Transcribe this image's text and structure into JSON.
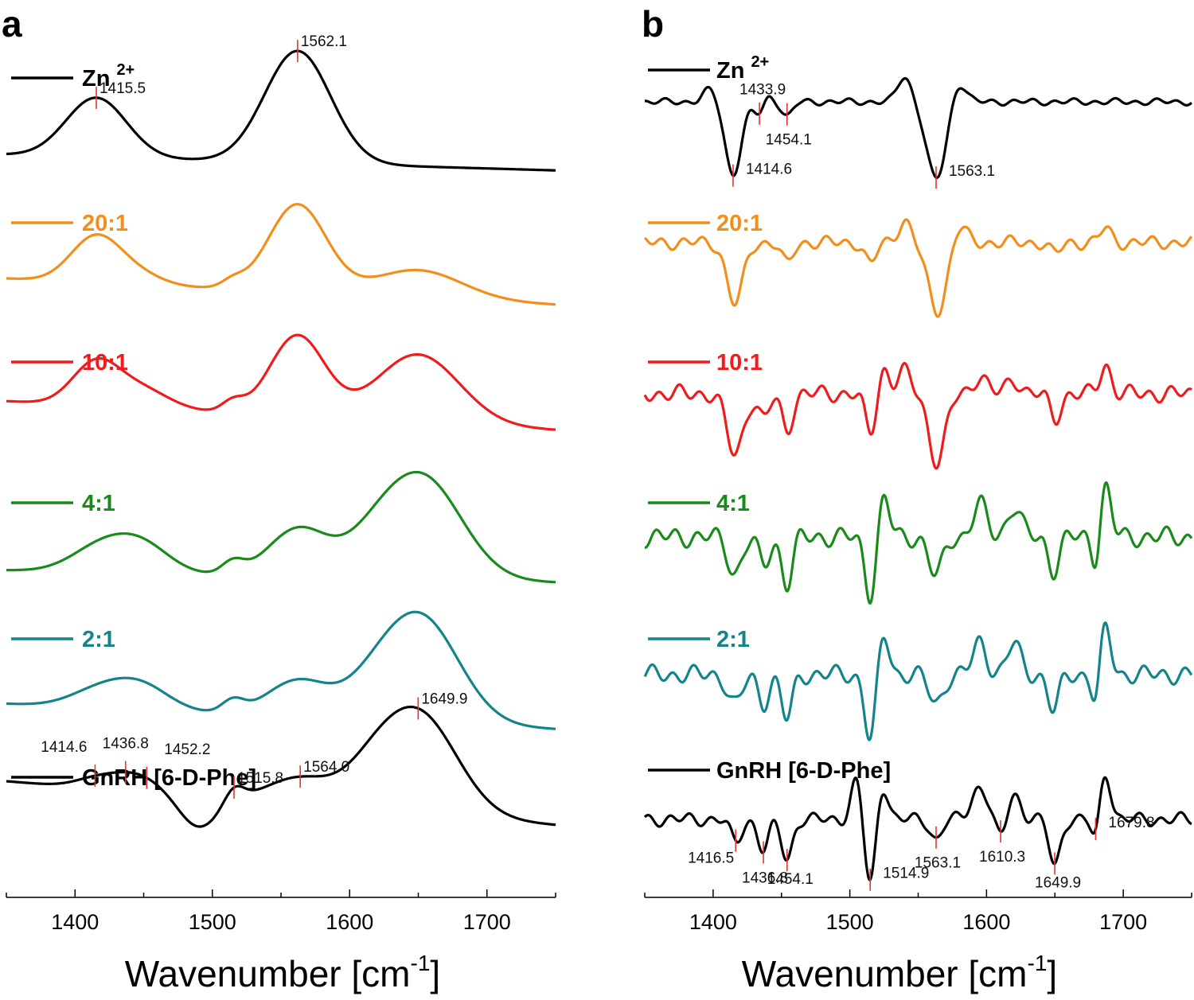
{
  "colors": {
    "zn": "#000000",
    "r20": "#f28e1c",
    "r10": "#ee1c1c",
    "r4": "#1a8a1a",
    "r2": "#13858a",
    "gnrh": "#000000",
    "marker": "#e8322f"
  },
  "chart_data": [
    {
      "panel": "a",
      "type": "line",
      "xlabel_main": "Wavenumber [cm",
      "xlabel_sup": "-1",
      "xlabel_close": "]",
      "xlim": [
        1350,
        1750
      ],
      "xticks": [
        1400,
        1500,
        1600,
        1700
      ],
      "ytick_labels": false,
      "series": [
        {
          "name": "Zn",
          "name_sup": "2+",
          "color_key": "zn",
          "offset": 5,
          "peaks": [
            {
              "x": 1415.5,
              "h": 0.68,
              "w": 22
            },
            {
              "x": 1562.1,
              "h": 1.28,
              "w": 24
            }
          ],
          "baseline": [
            0.16,
            -0.02
          ],
          "markers": [
            {
              "x": 1415.5,
              "label": "1415.5",
              "side": "right"
            },
            {
              "x": 1562.1,
              "label": "1562.1",
              "side": "right"
            }
          ]
        },
        {
          "name": "20:1",
          "color_key": "r20",
          "offset": 4,
          "peaks": [
            {
              "x": 1415,
              "h": 0.52,
              "w": 18
            },
            {
              "x": 1445,
              "h": 0.12,
              "w": 18
            },
            {
              "x": 1515,
              "h": 0.08,
              "w": 8
            },
            {
              "x": 1562,
              "h": 1.0,
              "w": 21
            },
            {
              "x": 1650,
              "h": 0.32,
              "w": 32
            }
          ],
          "baseline": [
            0.2,
            -0.1
          ]
        },
        {
          "name": "10:1",
          "color_key": "r10",
          "offset": 3,
          "peaks": [
            {
              "x": 1415,
              "h": 0.48,
              "w": 17
            },
            {
              "x": 1448,
              "h": 0.22,
              "w": 20
            },
            {
              "x": 1515,
              "h": 0.12,
              "w": 8
            },
            {
              "x": 1562,
              "h": 0.92,
              "w": 20
            },
            {
              "x": 1650,
              "h": 0.78,
              "w": 30
            }
          ],
          "baseline": [
            0.28,
            -0.05
          ]
        },
        {
          "name": "4:1",
          "color_key": "r4",
          "offset": 2,
          "peaks": [
            {
              "x": 1420,
              "h": 0.3,
              "w": 22
            },
            {
              "x": 1450,
              "h": 0.28,
              "w": 20
            },
            {
              "x": 1515,
              "h": 0.14,
              "w": 8
            },
            {
              "x": 1563,
              "h": 0.55,
              "w": 22
            },
            {
              "x": 1615,
              "h": 0.22,
              "w": 20
            },
            {
              "x": 1652,
              "h": 1.18,
              "w": 29
            }
          ],
          "baseline": [
            0.12,
            -0.02
          ]
        },
        {
          "name": "2:1",
          "color_key": "r2",
          "offset": 1,
          "peaks": [
            {
              "x": 1420,
              "h": 0.22,
              "w": 22
            },
            {
              "x": 1450,
              "h": 0.24,
              "w": 20
            },
            {
              "x": 1515,
              "h": 0.14,
              "w": 8
            },
            {
              "x": 1563,
              "h": 0.42,
              "w": 23
            },
            {
              "x": 1615,
              "h": 0.2,
              "w": 20
            },
            {
              "x": 1651,
              "h": 1.22,
              "w": 28
            }
          ],
          "baseline": [
            0.14,
            -0.15
          ]
        },
        {
          "name": "GnRH [6-D-Phe]",
          "color_key": "gnrh",
          "offset": 0,
          "peaks": [
            {
              "x": 1414.6,
              "h": 0.1,
              "w": 15
            },
            {
              "x": 1436.8,
              "h": 0.12,
              "w": 15
            },
            {
              "x": 1452.2,
              "h": 0.1,
              "w": 15
            },
            {
              "x": 1515.8,
              "h": 0.16,
              "w": 7
            },
            {
              "x": 1564.0,
              "h": 0.3,
              "w": 24
            },
            {
              "x": 1615,
              "h": 0.26,
              "w": 20
            },
            {
              "x": 1649.9,
              "h": 1.15,
              "w": 28
            }
          ],
          "dips": [
            {
              "x": 1490,
              "h": 0.35,
              "w": 14
            }
          ],
          "baseline": [
            0.3,
            -0.2
          ],
          "markers": [
            {
              "x": 1414.6,
              "label": "1414.6",
              "side": "left"
            },
            {
              "x": 1436.8,
              "label": "1436.8",
              "side": "center"
            },
            {
              "x": 1452.2,
              "label": "1452.2",
              "side": "right"
            },
            {
              "x": 1515.8,
              "label": "1515.8",
              "side": "right"
            },
            {
              "x": 1564.0,
              "label": "1564.0",
              "side": "right"
            },
            {
              "x": 1649.9,
              "label": "1649.9",
              "side": "right"
            }
          ]
        }
      ]
    },
    {
      "panel": "b",
      "type": "line",
      "xlabel_main": "Wavenumber [cm",
      "xlabel_sup": "-1",
      "xlabel_close": "]",
      "xlim": [
        1350,
        1750
      ],
      "xticks": [
        1400,
        1500,
        1600,
        1700
      ],
      "ytick_labels": false,
      "series": [
        {
          "name": "Zn",
          "name_sup": "2+",
          "color_key": "zn",
          "offset": 5,
          "dips": [
            {
              "x": 1414.6,
              "h": 1.0,
              "w": 6
            },
            {
              "x": 1433.9,
              "h": 0.18,
              "w": 4
            },
            {
              "x": 1454.1,
              "h": 0.2,
              "w": 4
            },
            {
              "x": 1563.1,
              "h": 1.08,
              "w": 7
            }
          ],
          "peaks": [
            {
              "x": 1398,
              "h": 0.18,
              "w": 5
            },
            {
              "x": 1440,
              "h": 0.1,
              "w": 4
            },
            {
              "x": 1540,
              "h": 0.35,
              "w": 5
            },
            {
              "x": 1580,
              "h": 0.28,
              "w": 5
            }
          ],
          "ripple": 0.05,
          "markers": [
            {
              "x": 1414.6,
              "label": "1414.6",
              "side": "right-low"
            },
            {
              "x": 1433.9,
              "label": "1433.9",
              "side": "up"
            },
            {
              "x": 1454.1,
              "label": "1454.1",
              "side": "down"
            },
            {
              "x": 1563.1,
              "label": "1563.1",
              "side": "right-low"
            }
          ]
        },
        {
          "name": "20:1",
          "color_key": "r20",
          "offset": 4,
          "dips": [
            {
              "x": 1416,
              "h": 0.85,
              "w": 6
            },
            {
              "x": 1454,
              "h": 0.3,
              "w": 4
            },
            {
              "x": 1515,
              "h": 0.3,
              "w": 4
            },
            {
              "x": 1564,
              "h": 0.95,
              "w": 7
            },
            {
              "x": 1650,
              "h": 0.15,
              "w": 4
            }
          ],
          "peaks": [
            {
              "x": 1540,
              "h": 0.3,
              "w": 5
            },
            {
              "x": 1580,
              "h": 0.25,
              "w": 5
            },
            {
              "x": 1687,
              "h": 0.2,
              "w": 4
            }
          ],
          "ripple": 0.1
        },
        {
          "name": "10:1",
          "color_key": "r10",
          "offset": 3,
          "dips": [
            {
              "x": 1416,
              "h": 0.85,
              "w": 6
            },
            {
              "x": 1437,
              "h": 0.35,
              "w": 4
            },
            {
              "x": 1454,
              "h": 0.5,
              "w": 4
            },
            {
              "x": 1515,
              "h": 0.55,
              "w": 4
            },
            {
              "x": 1564,
              "h": 0.95,
              "w": 6
            },
            {
              "x": 1650,
              "h": 0.35,
              "w": 4
            }
          ],
          "peaks": [
            {
              "x": 1525,
              "h": 0.35,
              "w": 4
            },
            {
              "x": 1540,
              "h": 0.3,
              "w": 5
            },
            {
              "x": 1595,
              "h": 0.25,
              "w": 5
            },
            {
              "x": 1620,
              "h": 0.2,
              "w": 5
            },
            {
              "x": 1687,
              "h": 0.4,
              "w": 4
            }
          ],
          "ripple": 0.13
        },
        {
          "name": "4:1",
          "color_key": "r4",
          "offset": 2,
          "dips": [
            {
              "x": 1416,
              "h": 0.5,
              "w": 5
            },
            {
              "x": 1437,
              "h": 0.4,
              "w": 4
            },
            {
              "x": 1454,
              "h": 0.65,
              "w": 4
            },
            {
              "x": 1515,
              "h": 0.8,
              "w": 4
            },
            {
              "x": 1563,
              "h": 0.55,
              "w": 5
            },
            {
              "x": 1649,
              "h": 0.45,
              "w": 4
            },
            {
              "x": 1680,
              "h": 0.4,
              "w": 3
            }
          ],
          "peaks": [
            {
              "x": 1525,
              "h": 0.55,
              "w": 4
            },
            {
              "x": 1595,
              "h": 0.45,
              "w": 5
            },
            {
              "x": 1620,
              "h": 0.42,
              "w": 5
            },
            {
              "x": 1687,
              "h": 0.7,
              "w": 4
            }
          ],
          "ripple": 0.15
        },
        {
          "name": "2:1",
          "color_key": "r2",
          "offset": 1,
          "dips": [
            {
              "x": 1416,
              "h": 0.42,
              "w": 5
            },
            {
              "x": 1437,
              "h": 0.38,
              "w": 4
            },
            {
              "x": 1454,
              "h": 0.62,
              "w": 4
            },
            {
              "x": 1515,
              "h": 0.9,
              "w": 4
            },
            {
              "x": 1563,
              "h": 0.4,
              "w": 5
            },
            {
              "x": 1649,
              "h": 0.5,
              "w": 4
            },
            {
              "x": 1680,
              "h": 0.42,
              "w": 3
            }
          ],
          "peaks": [
            {
              "x": 1525,
              "h": 0.55,
              "w": 4
            },
            {
              "x": 1595,
              "h": 0.45,
              "w": 5
            },
            {
              "x": 1620,
              "h": 0.42,
              "w": 5
            },
            {
              "x": 1687,
              "h": 0.65,
              "w": 4
            }
          ],
          "ripple": 0.14
        },
        {
          "name": "GnRH [6-D-Phe]",
          "color_key": "gnrh",
          "offset": 0,
          "dips": [
            {
              "x": 1416.5,
              "h": 0.32,
              "w": 4
            },
            {
              "x": 1436.8,
              "h": 0.42,
              "w": 4
            },
            {
              "x": 1454.1,
              "h": 0.55,
              "w": 4
            },
            {
              "x": 1514.9,
              "h": 0.95,
              "w": 4
            },
            {
              "x": 1563.1,
              "h": 0.28,
              "w": 4
            },
            {
              "x": 1610.3,
              "h": 0.3,
              "w": 4
            },
            {
              "x": 1649.9,
              "h": 0.65,
              "w": 4
            },
            {
              "x": 1679.8,
              "h": 0.32,
              "w": 3
            }
          ],
          "peaks": [
            {
              "x": 1505,
              "h": 0.55,
              "w": 4
            },
            {
              "x": 1524,
              "h": 0.5,
              "w": 4
            },
            {
              "x": 1595,
              "h": 0.45,
              "w": 6
            },
            {
              "x": 1620,
              "h": 0.35,
              "w": 5
            },
            {
              "x": 1687,
              "h": 0.65,
              "w": 4
            }
          ],
          "ripple": 0.1,
          "markers": [
            {
              "x": 1416.5,
              "label": "1416.5",
              "side": "left-low"
            },
            {
              "x": 1436.8,
              "label": "1436.8",
              "side": "down"
            },
            {
              "x": 1454.1,
              "label": "1454.1",
              "side": "down2"
            },
            {
              "x": 1514.9,
              "label": "1514.9",
              "side": "right-low"
            },
            {
              "x": 1563.1,
              "label": "1563.1",
              "side": "down"
            },
            {
              "x": 1610.3,
              "label": "1610.3",
              "side": "down"
            },
            {
              "x": 1649.9,
              "label": "1649.9",
              "side": "down2"
            },
            {
              "x": 1679.8,
              "label": "1679.8",
              "side": "right-low"
            }
          ]
        }
      ]
    }
  ]
}
